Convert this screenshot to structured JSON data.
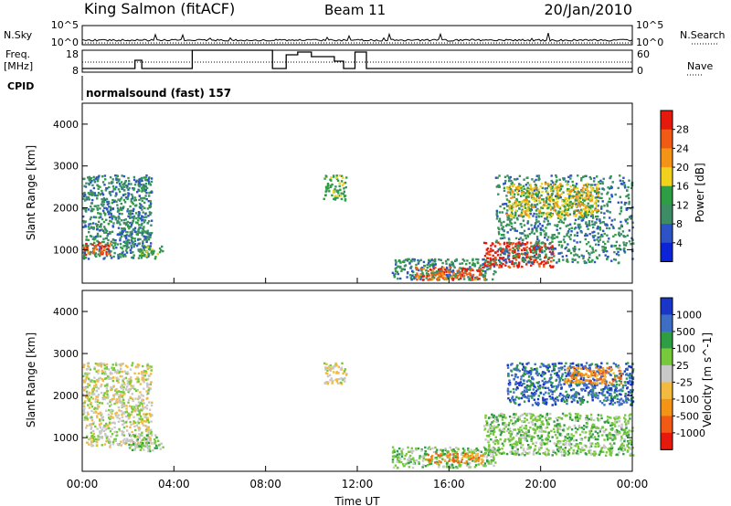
{
  "header": {
    "station": "King Salmon (fitACF)",
    "beam": "Beam 11",
    "date": "20/Jan/2010"
  },
  "status": {
    "nsky_label": "N.Sky",
    "nsearch_label": "N.Search",
    "nsky_ticks": [
      "10^5",
      "10^0"
    ],
    "nsearch_ticks": [
      "10^5",
      "10^0"
    ],
    "freq_label_1": "Freq.",
    "freq_label_2": "[MHz]",
    "freq_ticks": [
      "18",
      "8"
    ],
    "nave_label": "Nave",
    "nave_ticks": [
      "60",
      "0"
    ],
    "cpid_label": "CPID",
    "cpid_text": "normalsound (fast) 157"
  },
  "colors": {
    "power": [
      "#0b24d6",
      "#2e53c4",
      "#3d8c66",
      "#2e9d44",
      "#f0d21e",
      "#f39416",
      "#f05a14",
      "#e61a0c"
    ],
    "velocity": [
      "#e61a0c",
      "#f05a14",
      "#f39416",
      "#f3ba40",
      "#c8c8c8",
      "#78c83c",
      "#2e9d44",
      "#3d6ec4",
      "#1a36c8"
    ]
  },
  "chart_data": [
    {
      "type": "heatmap",
      "panel": "power",
      "ylabel": "Slant Range [km]",
      "yticks": [
        "1000",
        "2000",
        "3000",
        "4000"
      ],
      "ylim": [
        200,
        4500
      ],
      "xlim": [
        0,
        24
      ],
      "colorbar_label": "Power [dB]",
      "colorbar_ticks": [
        "4",
        "8",
        "12",
        "16",
        "20",
        "24",
        "28"
      ],
      "colorbar_range": [
        0,
        32
      ],
      "regions": [
        {
          "t": [
            0.0,
            3.0
          ],
          "r": [
            800,
            2800
          ],
          "level": 2
        },
        {
          "t": [
            0.0,
            1.2
          ],
          "r": [
            900,
            1200
          ],
          "level": 6
        },
        {
          "t": [
            2.5,
            3.5
          ],
          "r": [
            800,
            1100
          ],
          "level": 3
        },
        {
          "t": [
            10.5,
            11.5
          ],
          "r": [
            2200,
            2800
          ],
          "level": 3
        },
        {
          "t": [
            13.5,
            18.0
          ],
          "r": [
            300,
            800
          ],
          "level": 2
        },
        {
          "t": [
            14.5,
            17.5
          ],
          "r": [
            300,
            600
          ],
          "level": 6
        },
        {
          "t": [
            17.5,
            20.5
          ],
          "r": [
            600,
            1200
          ],
          "level": 7
        },
        {
          "t": [
            18.0,
            24.0
          ],
          "r": [
            700,
            2800
          ],
          "level": 2
        },
        {
          "t": [
            18.5,
            22.5
          ],
          "r": [
            1800,
            2600
          ],
          "level": 4
        }
      ]
    },
    {
      "type": "heatmap",
      "panel": "velocity",
      "ylabel": "Slant Range [km]",
      "yticks": [
        "1000",
        "2000",
        "3000",
        "4000"
      ],
      "ylim": [
        200,
        4500
      ],
      "xlim": [
        0,
        24
      ],
      "xticks": [
        "00:00",
        "04:00",
        "08:00",
        "12:00",
        "16:00",
        "20:00",
        "00:00"
      ],
      "xlabel": "Time UT",
      "colorbar_label": "Velocity [m s^-1]",
      "colorbar_ticks": [
        "-1000",
        "-500",
        "-100",
        "-25",
        "25",
        "100",
        "500",
        "1000"
      ],
      "regions": [
        {
          "t": [
            0.0,
            3.0
          ],
          "r": [
            800,
            2800
          ],
          "level": 4
        },
        {
          "t": [
            2.0,
            3.5
          ],
          "r": [
            700,
            1100
          ],
          "level": 5
        },
        {
          "t": [
            10.5,
            11.5
          ],
          "r": [
            2300,
            2800
          ],
          "level": 4
        },
        {
          "t": [
            13.5,
            18.0
          ],
          "r": [
            300,
            800
          ],
          "level": 5
        },
        {
          "t": [
            15.0,
            17.5
          ],
          "r": [
            400,
            650
          ],
          "level": 2
        },
        {
          "t": [
            17.5,
            24.0
          ],
          "r": [
            600,
            1600
          ],
          "level": 5
        },
        {
          "t": [
            18.5,
            24.0
          ],
          "r": [
            1800,
            2800
          ],
          "level": 7
        },
        {
          "t": [
            21.0,
            23.5
          ],
          "r": [
            2300,
            2700
          ],
          "level": 2
        }
      ]
    }
  ]
}
